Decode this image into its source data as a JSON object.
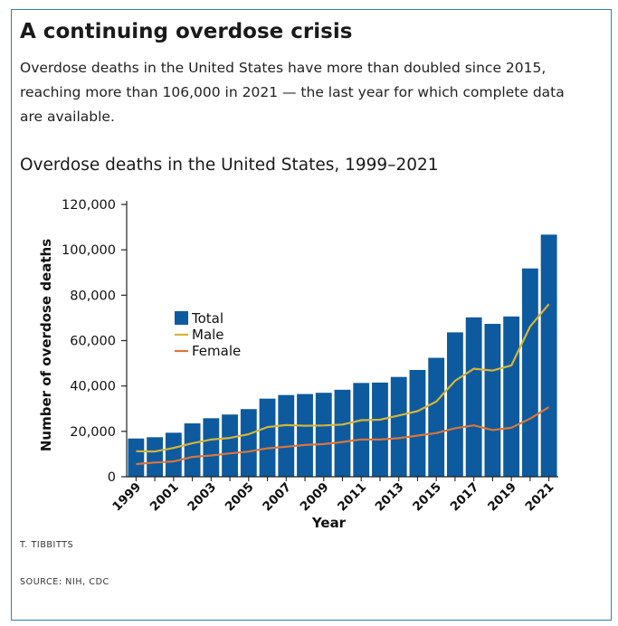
{
  "header": {
    "title": "A continuing overdose crisis",
    "subtitle": "Overdose deaths in the United States have more than doubled since 2015, reaching more than 106,000 in 2021 — the last year for which complete data are available."
  },
  "footer": {
    "credit": "T. TIBBITTS",
    "source": "SOURCE: NIH, CDC"
  },
  "colors": {
    "total": "#0e5a9e",
    "male": "#d4b43a",
    "female": "#d8763a",
    "border": "#2f7fb5"
  },
  "chart_data": {
    "type": "bar",
    "title": "Overdose deaths in the United States, 1999–2021",
    "xlabel": "Year",
    "ylabel": "Number of overdose deaths",
    "ylim": [
      0,
      120000
    ],
    "yticks": [
      0,
      20000,
      40000,
      60000,
      80000,
      100000,
      120000
    ],
    "ytick_labels": [
      "0",
      "20,000",
      "40,000",
      "60,000",
      "80,000",
      "100,000",
      "120,000"
    ],
    "categories": [
      "1999",
      "2000",
      "2001",
      "2002",
      "2003",
      "2004",
      "2005",
      "2006",
      "2007",
      "2008",
      "2009",
      "2010",
      "2011",
      "2012",
      "2013",
      "2014",
      "2015",
      "2016",
      "2017",
      "2018",
      "2019",
      "2020",
      "2021"
    ],
    "xtick_labels": [
      "1999",
      "",
      "2001",
      "",
      "2003",
      "",
      "2005",
      "",
      "2007",
      "",
      "2009",
      "",
      "2011",
      "",
      "2013",
      "",
      "2015",
      "",
      "2017",
      "",
      "2019",
      "",
      "2021"
    ],
    "legend_position": "middle-left",
    "grid": false,
    "series": [
      {
        "name": "Total",
        "kind": "bar",
        "color": "#0e5a9e",
        "values": [
          16849,
          17415,
          19394,
          23518,
          25785,
          27424,
          29813,
          34425,
          36010,
          36450,
          37004,
          38329,
          41340,
          41502,
          43982,
          47055,
          52404,
          63632,
          70237,
          67367,
          70630,
          91799,
          106699
        ]
      },
      {
        "name": "Male",
        "kind": "line",
        "color": "#d4b43a",
        "values": [
          11258,
          11140,
          12658,
          14775,
          16399,
          17120,
          18724,
          21893,
          22767,
          22468,
          22594,
          23006,
          24930,
          25124,
          26999,
          28921,
          33137,
          42246,
          47600,
          46802,
          49061,
          66211,
          76051
        ]
      },
      {
        "name": "Female",
        "kind": "line",
        "color": "#d8763a",
        "values": [
          5591,
          6275,
          6736,
          8743,
          9386,
          10304,
          11089,
          12532,
          13243,
          13982,
          14410,
          15323,
          16410,
          16378,
          16983,
          18134,
          19267,
          21386,
          22637,
          20565,
          21569,
          25588,
          30648
        ]
      }
    ]
  }
}
